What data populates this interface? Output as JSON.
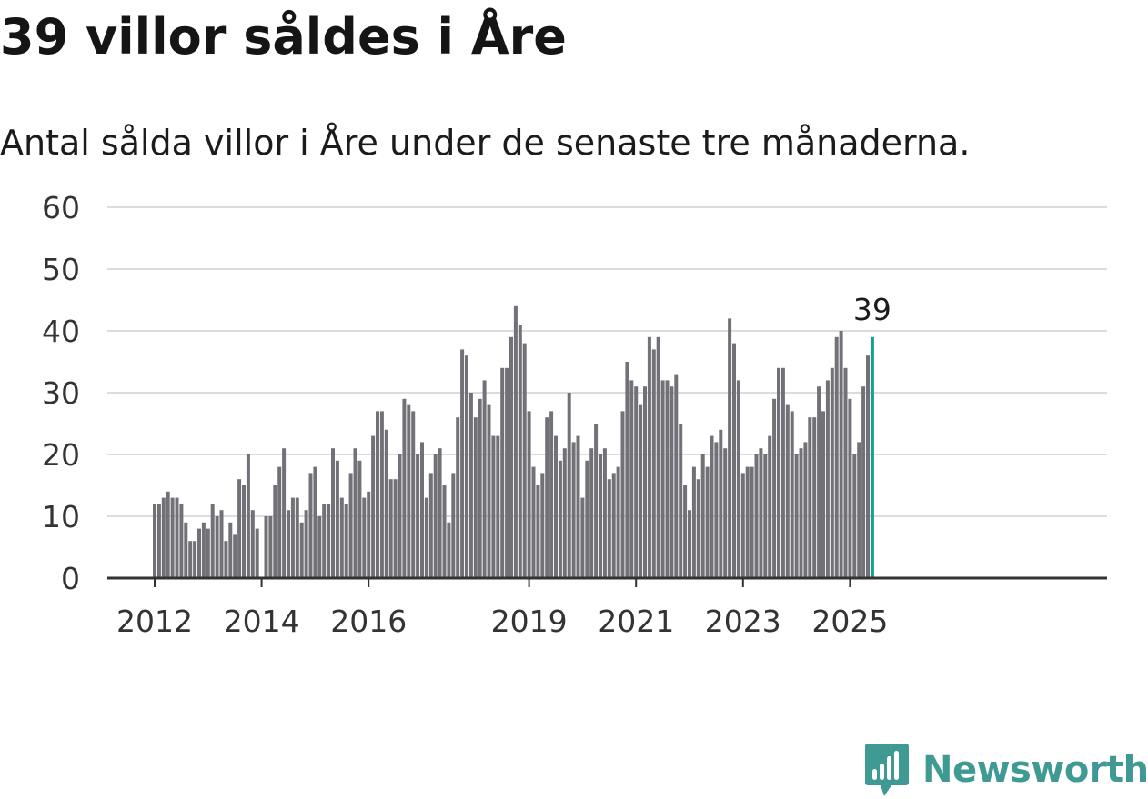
{
  "title": "39 villor såldes i Åre",
  "subtitle": "Antal sålda villor i Åre under de senaste tre månaderna.",
  "brand": {
    "name": "Newsworthy",
    "logo_icon": "bar-chart-bubble-icon"
  },
  "colors": {
    "bar": "#727177",
    "highlight": "#1a9e94",
    "grid": "#dcdcdc",
    "axis": "#333333",
    "brand": "#3f9a93"
  },
  "chart_data": {
    "type": "bar",
    "x_start": "2012-01",
    "interval": "month",
    "xlabel": "",
    "ylabel": "",
    "ylim": [
      0,
      60
    ],
    "yticks": [
      0,
      10,
      20,
      30,
      40,
      50,
      60
    ],
    "xticks": [
      {
        "label": "2012",
        "date": "2012-01"
      },
      {
        "label": "2014",
        "date": "2014-01"
      },
      {
        "label": "2016",
        "date": "2016-01"
      },
      {
        "label": "2019",
        "date": "2019-01"
      },
      {
        "label": "2021",
        "date": "2021-01"
      },
      {
        "label": "2023",
        "date": "2023-01"
      },
      {
        "label": "2025",
        "date": "2025-01"
      }
    ],
    "grid": true,
    "values": [
      12,
      12,
      13,
      14,
      13,
      13,
      12,
      9,
      6,
      6,
      8,
      9,
      8,
      12,
      10,
      11,
      6,
      9,
      7,
      16,
      15,
      20,
      11,
      8,
      0,
      10,
      10,
      15,
      18,
      21,
      11,
      13,
      13,
      9,
      11,
      17,
      18,
      10,
      12,
      12,
      21,
      19,
      13,
      12,
      17,
      21,
      19,
      13,
      14,
      23,
      27,
      27,
      24,
      16,
      16,
      20,
      29,
      28,
      27,
      20,
      22,
      13,
      17,
      20,
      21,
      15,
      9,
      17,
      26,
      37,
      36,
      30,
      26,
      29,
      32,
      28,
      23,
      23,
      34,
      34,
      39,
      44,
      41,
      38,
      27,
      18,
      15,
      17,
      26,
      27,
      23,
      19,
      21,
      30,
      22,
      23,
      13,
      19,
      21,
      25,
      20,
      21,
      16,
      17,
      18,
      27,
      35,
      32,
      31,
      28,
      31,
      39,
      37,
      39,
      32,
      32,
      31,
      33,
      25,
      15,
      11,
      18,
      16,
      20,
      18,
      23,
      22,
      24,
      21,
      42,
      38,
      32,
      17,
      18,
      18,
      20,
      21,
      20,
      23,
      29,
      34,
      34,
      28,
      27,
      20,
      21,
      22,
      26,
      26,
      31,
      27,
      32,
      34,
      39,
      40,
      34,
      29,
      20,
      22,
      31,
      36,
      39
    ],
    "highlight_label": "39"
  }
}
